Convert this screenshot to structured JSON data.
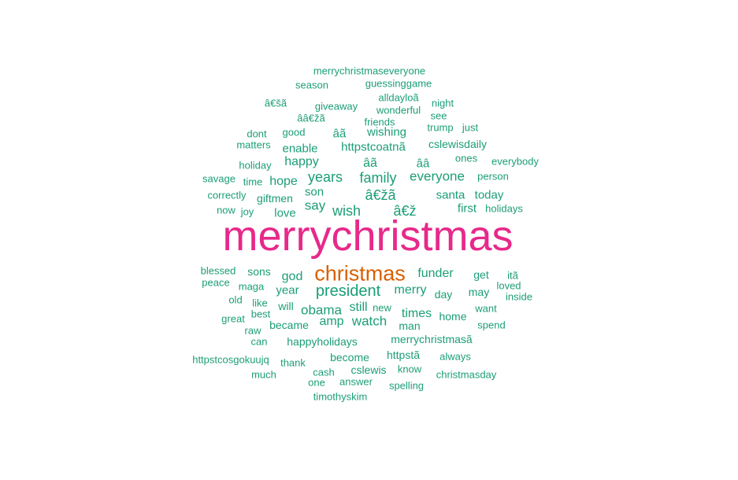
{
  "colors": {
    "primary": "#e7298a",
    "secondary": "#d95f02",
    "tertiary": "#7570b3",
    "default": "#1b9e77"
  },
  "words": [
    {
      "text": "merrychristmas",
      "tier": "primary"
    },
    {
      "text": "christmas",
      "tier": "secondary"
    },
    {
      "text": "president",
      "tier": "default"
    },
    {
      "text": "wish",
      "tier": "default"
    },
    {
      "text": "â€žã",
      "tier": "default"
    },
    {
      "text": "â€ž",
      "tier": "default"
    },
    {
      "text": "family",
      "tier": "default"
    },
    {
      "text": "years",
      "tier": "default"
    },
    {
      "text": "everyone",
      "tier": "default"
    },
    {
      "text": "say",
      "tier": "default"
    },
    {
      "text": "merry",
      "tier": "default"
    },
    {
      "text": "obama",
      "tier": "default"
    },
    {
      "text": "watch",
      "tier": "default"
    },
    {
      "text": "funder",
      "tier": "default"
    },
    {
      "text": "âã",
      "tier": "default"
    },
    {
      "text": "hope",
      "tier": "default"
    },
    {
      "text": "happy",
      "tier": "default"
    },
    {
      "text": "god",
      "tier": "default"
    },
    {
      "text": "times",
      "tier": "default"
    },
    {
      "text": "amp",
      "tier": "default"
    },
    {
      "text": "still",
      "tier": "default"
    },
    {
      "text": "santa",
      "tier": "default"
    },
    {
      "text": "today",
      "tier": "default"
    },
    {
      "text": "love",
      "tier": "default"
    },
    {
      "text": "son",
      "tier": "default"
    },
    {
      "text": "first",
      "tier": "default"
    },
    {
      "text": "enable",
      "tier": "default"
    },
    {
      "text": "httpstcoatnã",
      "tier": "default"
    },
    {
      "text": "cslewisdaily",
      "tier": "default"
    },
    {
      "text": "wishing",
      "tier": "default"
    },
    {
      "text": "âã",
      "tier": "default"
    },
    {
      "text": "ââ",
      "tier": "default"
    },
    {
      "text": "giftmen",
      "tier": "default"
    },
    {
      "text": "sons",
      "tier": "default"
    },
    {
      "text": "year",
      "tier": "default"
    },
    {
      "text": "will",
      "tier": "default"
    },
    {
      "text": "became",
      "tier": "default"
    },
    {
      "text": "man",
      "tier": "default"
    },
    {
      "text": "home",
      "tier": "default"
    },
    {
      "text": "day",
      "tier": "default"
    },
    {
      "text": "may",
      "tier": "default"
    },
    {
      "text": "get",
      "tier": "default"
    },
    {
      "text": "happyholidays",
      "tier": "default"
    },
    {
      "text": "merrychristmasã",
      "tier": "default"
    },
    {
      "text": "become",
      "tier": "default"
    },
    {
      "text": "httpstã",
      "tier": "default"
    },
    {
      "text": "cslewis",
      "tier": "default"
    },
    {
      "text": "merrychristmaseveryone",
      "tier": "default"
    },
    {
      "text": "season",
      "tier": "default"
    },
    {
      "text": "guessinggame",
      "tier": "default"
    },
    {
      "text": "alldayloã",
      "tier": "default"
    },
    {
      "text": "â€šã",
      "tier": "default"
    },
    {
      "text": "giveaway",
      "tier": "default"
    },
    {
      "text": "wonderful",
      "tier": "default"
    },
    {
      "text": "night",
      "tier": "default"
    },
    {
      "text": "see",
      "tier": "default"
    },
    {
      "text": "ââ€žã",
      "tier": "default"
    },
    {
      "text": "friends",
      "tier": "default"
    },
    {
      "text": "good",
      "tier": "default"
    },
    {
      "text": "trump",
      "tier": "default"
    },
    {
      "text": "just",
      "tier": "default"
    },
    {
      "text": "dont",
      "tier": "default"
    },
    {
      "text": "matters",
      "tier": "default"
    },
    {
      "text": "ones",
      "tier": "default"
    },
    {
      "text": "holiday",
      "tier": "default"
    },
    {
      "text": "everybody",
      "tier": "default"
    },
    {
      "text": "savage",
      "tier": "default"
    },
    {
      "text": "time",
      "tier": "default"
    },
    {
      "text": "person",
      "tier": "default"
    },
    {
      "text": "correctly",
      "tier": "default"
    },
    {
      "text": "now",
      "tier": "default"
    },
    {
      "text": "joy",
      "tier": "default"
    },
    {
      "text": "holidays",
      "tier": "default"
    },
    {
      "text": "blessed",
      "tier": "default"
    },
    {
      "text": "peace",
      "tier": "default"
    },
    {
      "text": "maga",
      "tier": "default"
    },
    {
      "text": "itã",
      "tier": "default"
    },
    {
      "text": "loved",
      "tier": "default"
    },
    {
      "text": "old",
      "tier": "default"
    },
    {
      "text": "like",
      "tier": "default"
    },
    {
      "text": "inside",
      "tier": "default"
    },
    {
      "text": "best",
      "tier": "default"
    },
    {
      "text": "new",
      "tier": "default"
    },
    {
      "text": "want",
      "tier": "default"
    },
    {
      "text": "great",
      "tier": "default"
    },
    {
      "text": "spend",
      "tier": "default"
    },
    {
      "text": "raw",
      "tier": "default"
    },
    {
      "text": "can",
      "tier": "default"
    },
    {
      "text": "httpstcosgokuujq",
      "tier": "default"
    },
    {
      "text": "thank",
      "tier": "default"
    },
    {
      "text": "always",
      "tier": "default"
    },
    {
      "text": "much",
      "tier": "default"
    },
    {
      "text": "cash",
      "tier": "default"
    },
    {
      "text": "know",
      "tier": "default"
    },
    {
      "text": "christmasday",
      "tier": "default"
    },
    {
      "text": "one",
      "tier": "default"
    },
    {
      "text": "answer",
      "tier": "default"
    },
    {
      "text": "spelling",
      "tier": "default"
    },
    {
      "text": "timothyskim",
      "tier": "default"
    }
  ]
}
